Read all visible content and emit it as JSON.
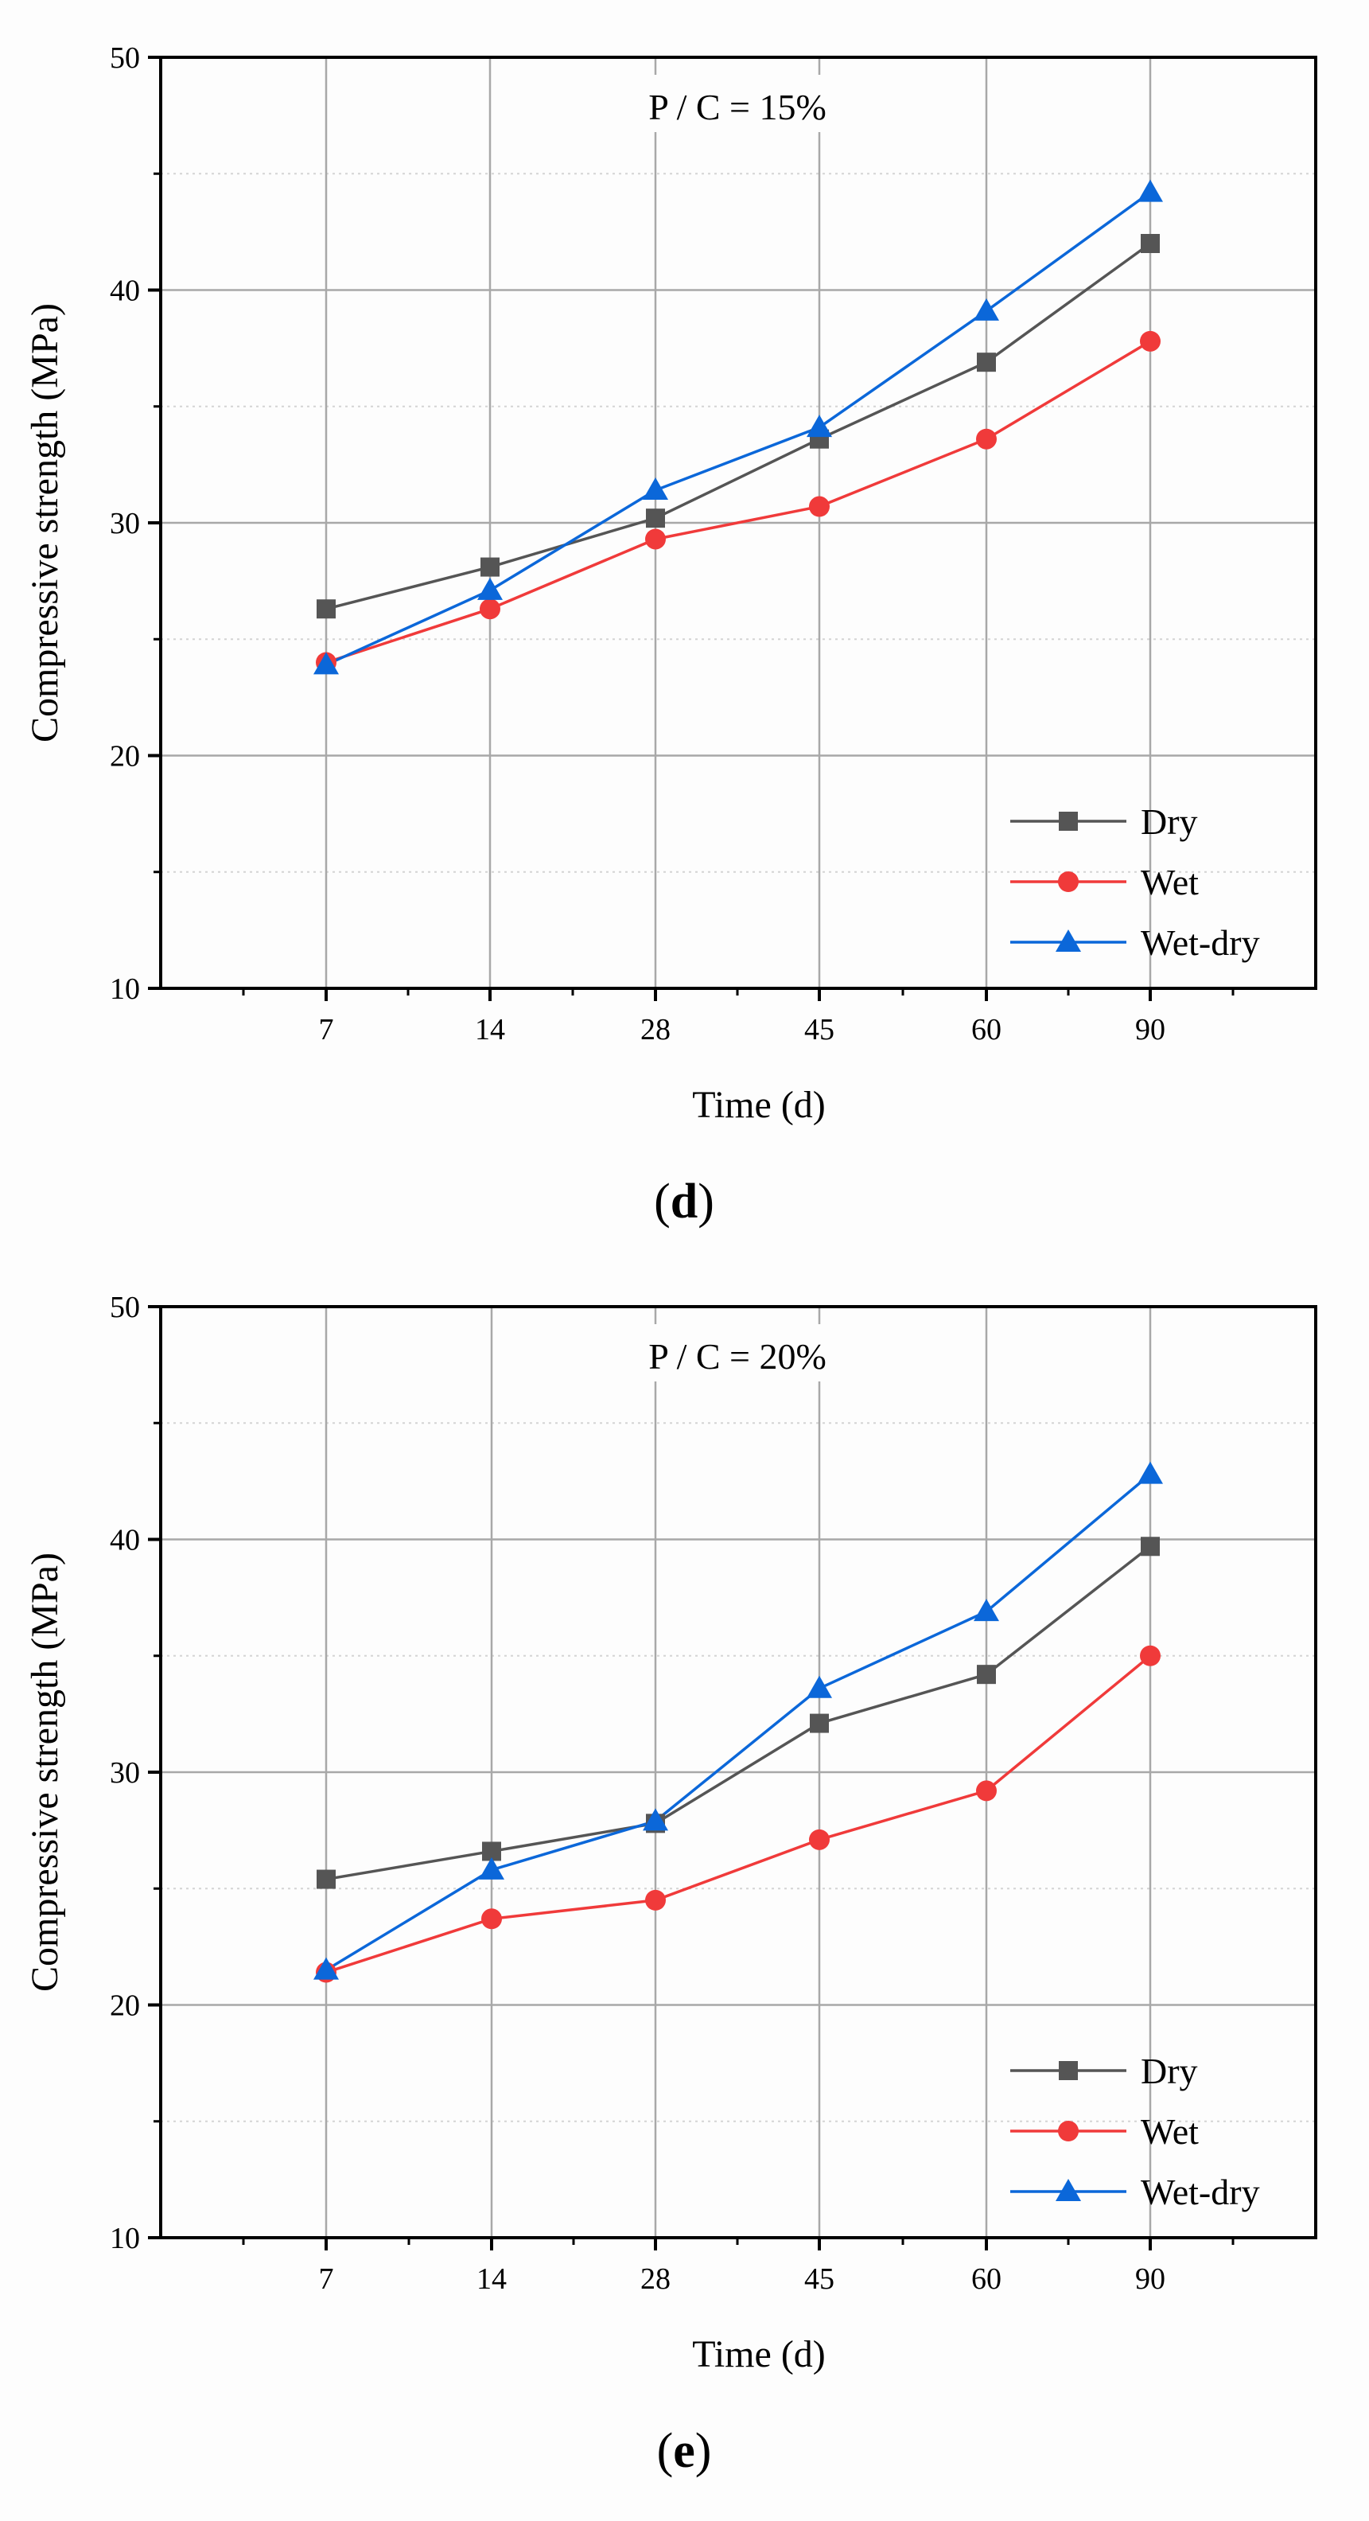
{
  "chart_data": [
    {
      "type": "line",
      "panel": "d",
      "annotation": "P / C = 15%",
      "title": "",
      "xlabel": "Time (d)",
      "ylabel": "Compressive strength (MPa)",
      "categories": [
        "7",
        "14",
        "28",
        "45",
        "60",
        "90"
      ],
      "ylim": [
        10,
        50
      ],
      "yticks": [
        "10",
        "20",
        "30",
        "40",
        "50"
      ],
      "grid": true,
      "legend_position": "bottom-right",
      "series": [
        {
          "name": "Dry",
          "marker": "square",
          "color": "#555555",
          "values": [
            26.3,
            28.1,
            30.2,
            33.6,
            36.9,
            42.0
          ]
        },
        {
          "name": "Wet",
          "marker": "circle",
          "color": "#f03a3a",
          "values": [
            24.0,
            26.3,
            29.3,
            30.7,
            33.6,
            37.8
          ]
        },
        {
          "name": "Wet-dry",
          "marker": "triangle",
          "color": "#0b67d9",
          "values": [
            23.9,
            27.1,
            31.4,
            34.1,
            39.1,
            44.2
          ]
        }
      ]
    },
    {
      "type": "line",
      "panel": "e",
      "annotation": "P / C = 20%",
      "title": "",
      "xlabel": "Time (d)",
      "ylabel": "Compressive strength (MPa)",
      "categories": [
        "7",
        "14",
        "28",
        "45",
        "60",
        "90"
      ],
      "ylim": [
        10,
        50
      ],
      "yticks": [
        "10",
        "20",
        "30",
        "40",
        "50"
      ],
      "grid": true,
      "legend_position": "bottom-right",
      "series": [
        {
          "name": "Dry",
          "marker": "square",
          "color": "#555555",
          "values": [
            25.4,
            26.6,
            27.8,
            32.1,
            34.2,
            39.7
          ]
        },
        {
          "name": "Wet",
          "marker": "circle",
          "color": "#f03a3a",
          "values": [
            21.4,
            23.7,
            24.5,
            27.1,
            29.2,
            35.0
          ]
        },
        {
          "name": "Wet-dry",
          "marker": "triangle",
          "color": "#0b67d9",
          "values": [
            21.5,
            25.8,
            27.9,
            33.6,
            36.9,
            42.8
          ]
        }
      ]
    }
  ],
  "captions": {
    "d": {
      "open": "(",
      "letter": "d",
      "close": ")"
    },
    "e": {
      "open": "(",
      "letter": "e",
      "close": ")"
    }
  }
}
